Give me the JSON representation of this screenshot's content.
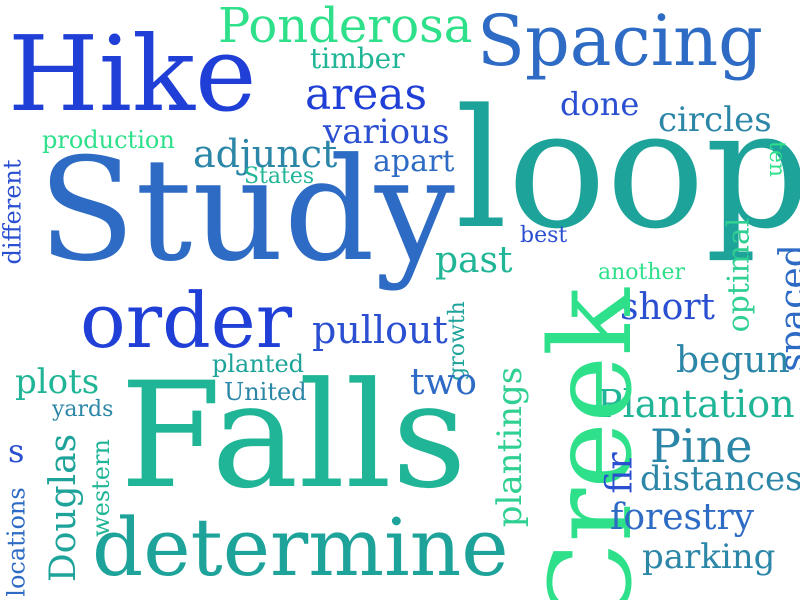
{
  "words": {
    "hike": "Hike",
    "spacing": "Spacing",
    "ponderosa": "Ponderosa",
    "timber": "timber",
    "areas": "areas",
    "done": "done",
    "circles": "circles",
    "production": "production",
    "various": "various",
    "adjunct": "adjunct",
    "states": "States",
    "apart": "apart",
    "loop": "loop",
    "ten": "ten",
    "different": "different",
    "study": "Study",
    "best": "best",
    "optimal": "optimal",
    "past": "past",
    "another": "another",
    "order": "order",
    "short": "short",
    "spaced": "spaced",
    "pullout": "pullout",
    "growth": "growth",
    "planted": "planted",
    "begun": "begun",
    "plots": "plots",
    "united": "United",
    "two": "two",
    "yards": "yards",
    "plantation": "Plantation",
    "falls": "Falls",
    "creek": "Creek",
    "pine": "Pine",
    "s": "s",
    "douglas": "Douglas",
    "western": "western",
    "plantings": "plantings",
    "fir": "fir",
    "distances": "distances",
    "locations": "locations",
    "forestry": "forestry",
    "determine": "determine",
    "parking": "parking"
  },
  "colors": {
    "blue": "#1f3fd6",
    "royal": "#2a4fd0",
    "mid_blue": "#2e6bc4",
    "steel_blue": "#3a79b8",
    "teal_blue": "#2b86a7",
    "teal": "#1ea39a",
    "sea_green": "#20b596",
    "mint": "#2fd092",
    "spring_green": "#2fe08b"
  }
}
